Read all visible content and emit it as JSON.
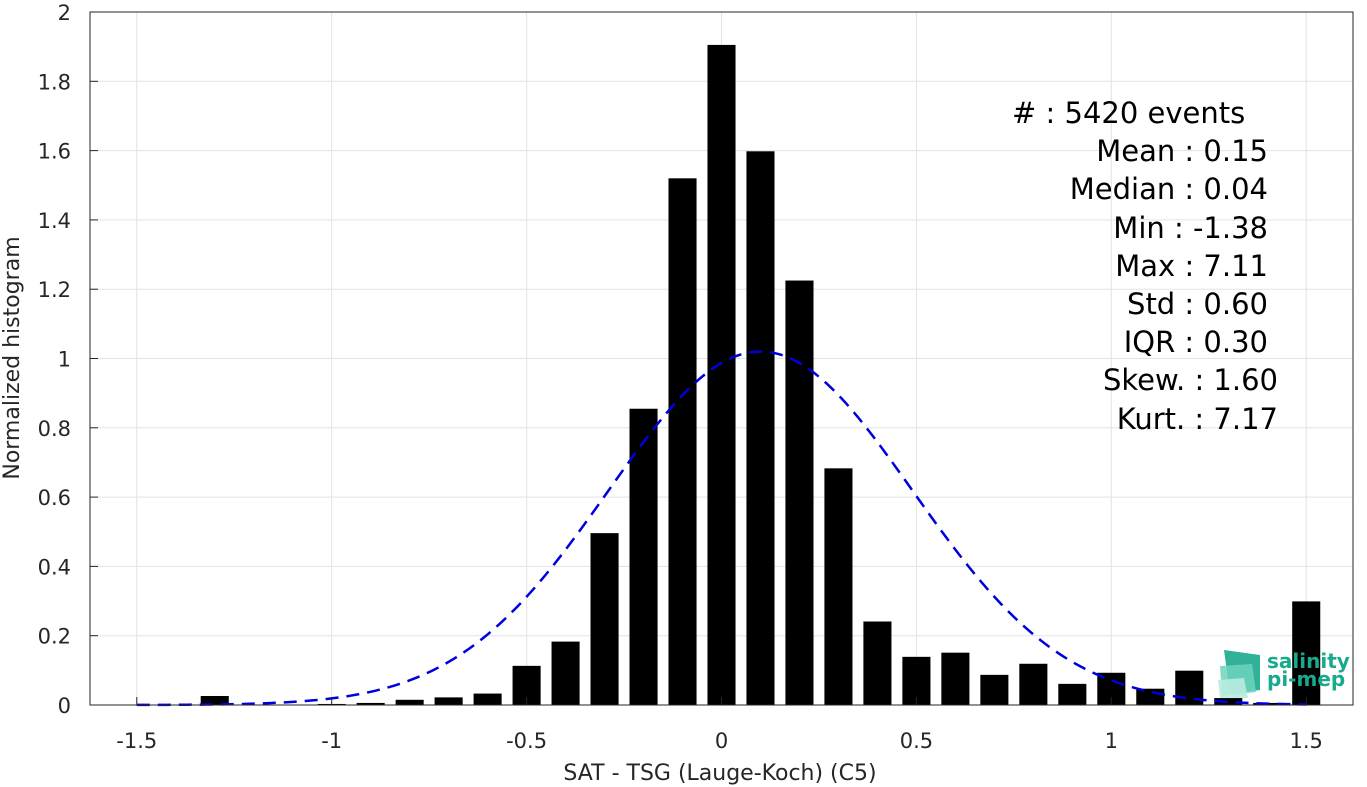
{
  "chart_data": {
    "type": "bar",
    "xlabel": "SAT - TSG (Lauge-Koch) (C5)",
    "ylabel": "Normalized histogram",
    "xlim": [
      -1.62,
      1.62
    ],
    "ylim": [
      0,
      2
    ],
    "grid": true,
    "xticks": [
      -1.5,
      -1,
      -0.5,
      0,
      0.5,
      1,
      1.5
    ],
    "xtick_labels": [
      "-1.5",
      "-1",
      "-0.5",
      "0",
      "0.5",
      "1",
      "1.5"
    ],
    "yticks": [
      0,
      0.2,
      0.4,
      0.6,
      0.8,
      1,
      1.2,
      1.4,
      1.6,
      1.8,
      2
    ],
    "ytick_labels": [
      "0",
      "0.2",
      "0.4",
      "0.6",
      "0.8",
      "1",
      "1.2",
      "1.4",
      "1.6",
      "1.8",
      "2"
    ],
    "bar_width": 0.072,
    "bar_color": "#000000",
    "bars": [
      {
        "x": -1.5,
        "value": 0.0
      },
      {
        "x": -1.4,
        "value": 0.0
      },
      {
        "x": -1.3,
        "value": 0.026
      },
      {
        "x": -1.2,
        "value": 0.0
      },
      {
        "x": -1.1,
        "value": 0.0
      },
      {
        "x": -1.0,
        "value": 0.003
      },
      {
        "x": -0.9,
        "value": 0.006
      },
      {
        "x": -0.8,
        "value": 0.015
      },
      {
        "x": -0.7,
        "value": 0.022
      },
      {
        "x": -0.6,
        "value": 0.033
      },
      {
        "x": -0.5,
        "value": 0.113
      },
      {
        "x": -0.4,
        "value": 0.183
      },
      {
        "x": -0.3,
        "value": 0.496
      },
      {
        "x": -0.2,
        "value": 0.855
      },
      {
        "x": -0.1,
        "value": 1.52
      },
      {
        "x": 0.0,
        "value": 1.905
      },
      {
        "x": 0.1,
        "value": 1.598
      },
      {
        "x": 0.2,
        "value": 1.225
      },
      {
        "x": 0.3,
        "value": 0.683
      },
      {
        "x": 0.4,
        "value": 0.241
      },
      {
        "x": 0.5,
        "value": 0.139
      },
      {
        "x": 0.6,
        "value": 0.151
      },
      {
        "x": 0.7,
        "value": 0.087
      },
      {
        "x": 0.8,
        "value": 0.119
      },
      {
        "x": 0.9,
        "value": 0.061
      },
      {
        "x": 1.0,
        "value": 0.093
      },
      {
        "x": 1.1,
        "value": 0.047
      },
      {
        "x": 1.2,
        "value": 0.099
      },
      {
        "x": 1.3,
        "value": 0.02
      },
      {
        "x": 1.4,
        "value": 0.006
      },
      {
        "x": 1.5,
        "value": 0.299
      }
    ],
    "fit_curve": {
      "type": "gaussian",
      "mean": 0.1,
      "std": 0.39,
      "peak": 1.02,
      "x_range": [
        -1.5,
        1.5
      ],
      "color": "#0000dd",
      "style": "dashed"
    },
    "stats": [
      {
        "label": "#  : 5420 events"
      },
      {
        "label": "Mean : 0.15"
      },
      {
        "label": "Median : 0.04"
      },
      {
        "label": "Min : -1.38"
      },
      {
        "label": "Max : 7.11"
      },
      {
        "label": "Std : 0.60"
      },
      {
        "label": "IQR : 0.30"
      },
      {
        "label": "Skew. : 1.60"
      },
      {
        "label": "Kurt. : 7.17"
      }
    ]
  },
  "logo": {
    "line1": "salinity",
    "line2": "pi-mep",
    "color": "#19a98d"
  }
}
